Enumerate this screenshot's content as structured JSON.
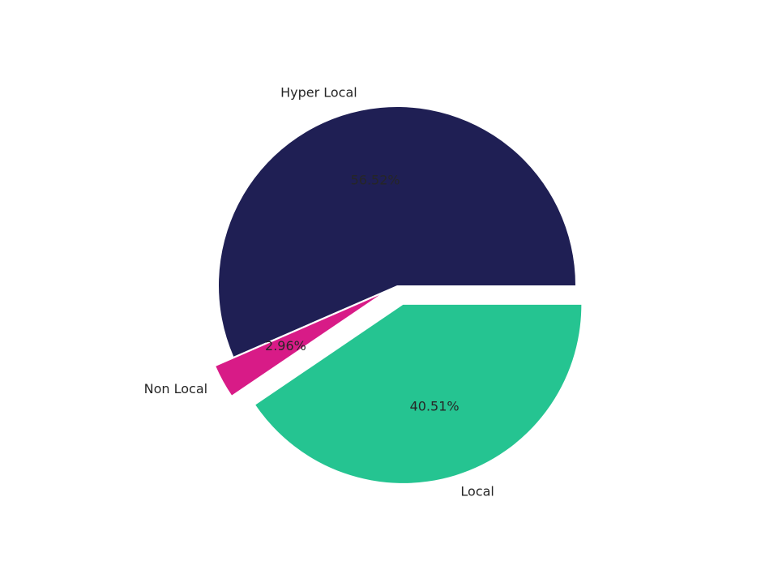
{
  "chart_data": {
    "type": "pie",
    "categories": [
      "Hyper Local",
      "Non Local",
      "Local"
    ],
    "values": [
      56.52,
      2.96,
      40.51
    ],
    "value_labels": [
      "56.52%",
      "2.96%",
      "40.51%"
    ],
    "colors": [
      "#1f1f54",
      "#d81b87",
      "#25c491"
    ]
  }
}
